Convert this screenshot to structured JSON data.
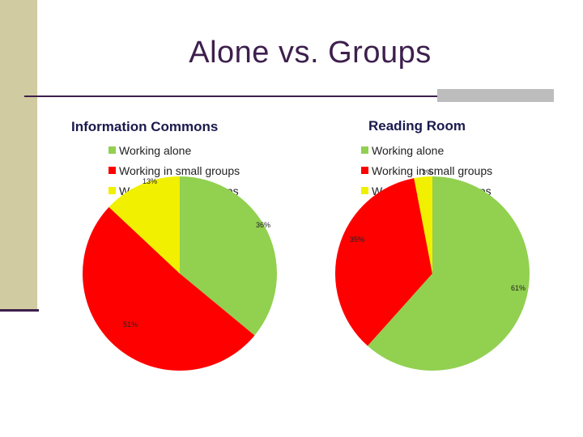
{
  "slide": {
    "title": "Alone vs. Groups"
  },
  "chart_data": [
    {
      "type": "pie",
      "title": "Information Commons",
      "categories": [
        "Working alone",
        "Working in small groups",
        "Working in large groups"
      ],
      "values": [
        36,
        51,
        13
      ],
      "labels": [
        "36%",
        "51%",
        "13%"
      ],
      "colors": [
        "#92d050",
        "#ff0000",
        "#f0f000"
      ],
      "legend_position": "top"
    },
    {
      "type": "pie",
      "title": "Reading Room",
      "categories": [
        "Working alone",
        "Working in small groups",
        "Working in large groups"
      ],
      "values": [
        61,
        35,
        3
      ],
      "labels": [
        "61%",
        "35%",
        "3%"
      ],
      "colors": [
        "#92d050",
        "#ff0000",
        "#f0f000"
      ],
      "legend_position": "top"
    }
  ]
}
